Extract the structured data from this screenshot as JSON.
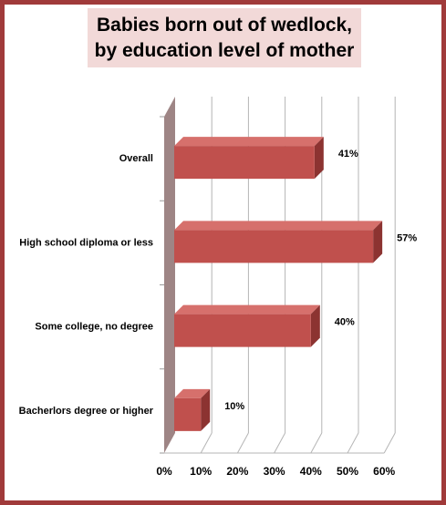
{
  "chart_data": {
    "type": "bar",
    "orientation": "horizontal",
    "title_lines": [
      "Babies born out of wedlock,",
      "by education level of mother"
    ],
    "categories": [
      "Overall",
      "High school  diploma or less",
      "Some college,  no degree",
      "Bacherlors degree or higher"
    ],
    "values": [
      41,
      57,
      40,
      10
    ],
    "data_labels": [
      "41%",
      "57%",
      "40%",
      "10%"
    ],
    "x_ticks": [
      0,
      10,
      20,
      30,
      40,
      50,
      60
    ],
    "x_tick_labels": [
      "0%",
      "10%",
      "20%",
      "30%",
      "40%",
      "50%",
      "60%"
    ],
    "xlim": [
      0,
      60
    ],
    "grid": true,
    "legend": "none",
    "colors": {
      "bar_front": "#c0504d",
      "bar_top": "#d6706c",
      "bar_side": "#8c3331",
      "side_wall": "#9e8585",
      "frame": "#a03a3a",
      "title_bg": "#f2d9d8"
    }
  }
}
